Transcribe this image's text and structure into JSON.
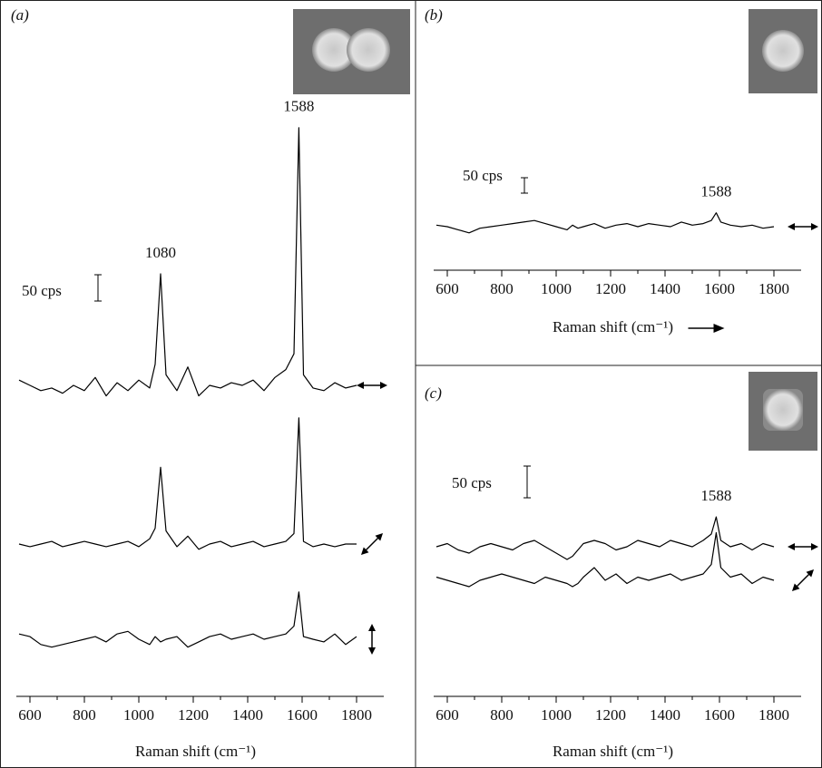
{
  "chart_data": [
    {
      "type": "line",
      "panel": "(a)",
      "x": [
        560,
        600,
        640,
        680,
        720,
        760,
        800,
        840,
        880,
        920,
        960,
        1000,
        1040,
        1060,
        1080,
        1100,
        1140,
        1180,
        1220,
        1260,
        1300,
        1340,
        1380,
        1420,
        1460,
        1500,
        1540,
        1570,
        1588,
        1605,
        1640,
        1680,
        1720,
        1760,
        1800
      ],
      "series": [
        {
          "color": "#000000",
          "values": [
            10,
            0,
            -10,
            -5,
            -15,
            0,
            -10,
            15,
            -20,
            5,
            -10,
            10,
            -5,
            40,
            212,
            20,
            -10,
            35,
            -20,
            0,
            -5,
            5,
            0,
            10,
            -10,
            15,
            30,
            60,
            490,
            20,
            -5,
            -10,
            5,
            -5,
            0
          ]
        },
        {
          "color": "#000000",
          "values": [
            0,
            -5,
            0,
            5,
            -5,
            0,
            5,
            0,
            -5,
            0,
            5,
            -5,
            10,
            30,
            146,
            25,
            -5,
            15,
            -10,
            0,
            5,
            -5,
            0,
            5,
            -5,
            0,
            5,
            20,
            240,
            5,
            -5,
            0,
            -5,
            0,
            0
          ]
        },
        {
          "color": "#000000",
          "values": [
            10,
            5,
            -10,
            -15,
            -10,
            -5,
            0,
            5,
            -5,
            10,
            15,
            0,
            -10,
            5,
            -5,
            0,
            5,
            -15,
            -5,
            5,
            10,
            0,
            5,
            10,
            0,
            5,
            10,
            25,
            90,
            5,
            0,
            -5,
            10,
            -10,
            5
          ]
        }
      ],
      "xlim": [
        550,
        1900
      ],
      "xticks": [
        600,
        800,
        1000,
        1200,
        1400,
        1600,
        1800
      ],
      "xminorticks": [
        700,
        900,
        1100,
        1300,
        1500,
        1700
      ],
      "xlabel": "Raman shift (cm⁻¹)",
      "scale_bar": {
        "value": 50,
        "label": "50 cps"
      },
      "annotations": [
        {
          "text": "1080",
          "x": 1080
        },
        {
          "text": "1588",
          "x": 1588
        }
      ]
    },
    {
      "type": "line",
      "panel": "(b)",
      "x": [
        560,
        600,
        640,
        680,
        720,
        760,
        800,
        840,
        880,
        920,
        960,
        1000,
        1040,
        1060,
        1080,
        1100,
        1140,
        1180,
        1220,
        1260,
        1300,
        1340,
        1380,
        1420,
        1460,
        1500,
        1540,
        1570,
        1588,
        1605,
        1640,
        1680,
        1720,
        1760,
        1800
      ],
      "series": [
        {
          "color": "#000000",
          "values": [
            5,
            0,
            -10,
            -20,
            -5,
            0,
            5,
            10,
            15,
            20,
            10,
            0,
            -10,
            5,
            -5,
            0,
            10,
            -5,
            5,
            10,
            0,
            10,
            5,
            0,
            15,
            5,
            10,
            20,
            45,
            15,
            5,
            0,
            5,
            -5,
            0
          ]
        }
      ],
      "xlim": [
        550,
        1900
      ],
      "xticks": [
        600,
        800,
        1000,
        1200,
        1400,
        1600,
        1800
      ],
      "xminorticks": [
        700,
        900,
        1100,
        1300,
        1500,
        1700
      ],
      "xlabel": "Raman shift (cm⁻¹)",
      "scale_bar": {
        "value": 50,
        "label": "50 cps"
      },
      "annotations": [
        {
          "text": "1588",
          "x": 1588
        }
      ]
    },
    {
      "type": "line",
      "panel": "(c)",
      "x": [
        560,
        600,
        640,
        680,
        720,
        760,
        800,
        840,
        880,
        920,
        960,
        1000,
        1040,
        1060,
        1080,
        1100,
        1140,
        1180,
        1220,
        1260,
        1300,
        1340,
        1380,
        1420,
        1460,
        1500,
        1540,
        1570,
        1588,
        1605,
        1640,
        1680,
        1720,
        1760,
        1800
      ],
      "series": [
        {
          "color": "#000000",
          "values": [
            0,
            5,
            -5,
            -10,
            0,
            5,
            0,
            -5,
            5,
            10,
            0,
            -10,
            -20,
            -15,
            -5,
            5,
            10,
            5,
            -5,
            0,
            10,
            5,
            0,
            10,
            5,
            0,
            10,
            20,
            47,
            10,
            0,
            5,
            -5,
            5,
            0
          ]
        },
        {
          "color": "#000000",
          "values": [
            5,
            0,
            -5,
            -10,
            0,
            5,
            10,
            5,
            0,
            -5,
            5,
            0,
            -5,
            -10,
            -5,
            5,
            20,
            0,
            10,
            -5,
            5,
            0,
            5,
            10,
            0,
            5,
            10,
            25,
            75,
            20,
            5,
            10,
            -5,
            5,
            0
          ]
        }
      ],
      "xlim": [
        550,
        1900
      ],
      "xticks": [
        600,
        800,
        1000,
        1200,
        1400,
        1600,
        1800
      ],
      "xminorticks": [
        700,
        900,
        1100,
        1300,
        1500,
        1700
      ],
      "xlabel": "Raman shift (cm⁻¹)",
      "scale_bar": {
        "value": 50,
        "label": "50 cps"
      },
      "annotations": [
        {
          "text": "1588",
          "x": 1588
        }
      ]
    }
  ]
}
